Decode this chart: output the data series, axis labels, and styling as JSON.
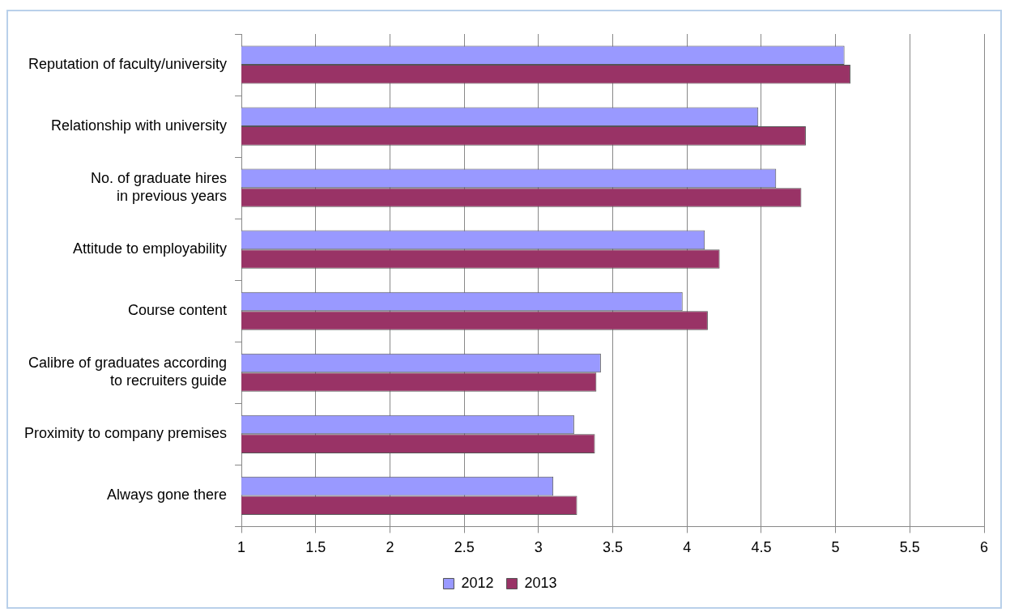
{
  "chart_data": {
    "type": "bar",
    "orientation": "horizontal",
    "categories": [
      "Reputation of faculty/university",
      "Relationship with university",
      "No. of graduate hires\nin previous years",
      "Attitude to employability",
      "Course content",
      "Calibre of graduates according\nto recruiters guide",
      "Proximity to company premises",
      "Always gone there"
    ],
    "series": [
      {
        "name": "2012",
        "color": "#9999ff",
        "values": [
          5.06,
          4.48,
          4.6,
          4.12,
          3.97,
          3.42,
          3.24,
          3.1
        ]
      },
      {
        "name": "2013",
        "color": "#993366",
        "values": [
          5.1,
          4.8,
          4.77,
          4.22,
          4.14,
          3.39,
          3.38,
          3.26
        ]
      }
    ],
    "xlim": [
      1,
      6
    ],
    "xticks": [
      1,
      1.5,
      2,
      2.5,
      3,
      3.5,
      4,
      4.5,
      5,
      5.5,
      6
    ],
    "grid": "x",
    "legend": "bottom"
  }
}
